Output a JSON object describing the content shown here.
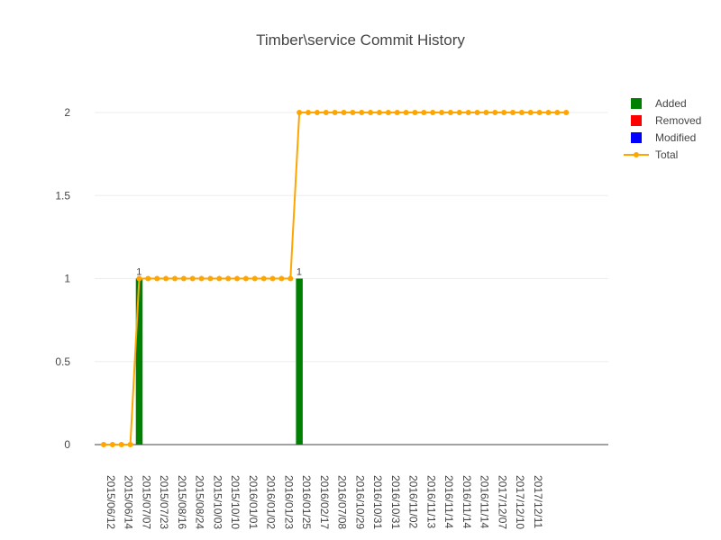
{
  "chart_data": {
    "type": "bar",
    "title": "Timber\\service Commit History",
    "xlabel": "",
    "ylabel": "",
    "ylim": [
      0,
      2.2
    ],
    "y_ticks": [
      0,
      0.5,
      1,
      1.5,
      2
    ],
    "y_tick_labels": [
      "0",
      "0.5",
      "1",
      "1.5",
      "2"
    ],
    "x_tick_labels": [
      "2015/06/12",
      "2015/06/14",
      "2015/07/07",
      "2015/07/23",
      "2015/08/16",
      "2015/08/24",
      "2015/10/03",
      "2015/10/10",
      "2016/01/01",
      "2016/01/02",
      "2016/01/23",
      "2016/01/25",
      "2016/02/17",
      "2016/07/08",
      "2016/10/29",
      "2016/10/31",
      "2016/10/31",
      "2016/11/02",
      "2016/11/13",
      "2016/11/14",
      "2016/11/14",
      "2016/11/14",
      "2017/12/07",
      "2017/12/10",
      "2017/12/11"
    ],
    "points_per_tick": 2,
    "series": [
      {
        "name": "Added",
        "kind": "bar",
        "color": "#008000",
        "bars": [
          {
            "index": 4,
            "value": 1,
            "label": "1"
          },
          {
            "index": 22,
            "value": 1,
            "label": "1"
          }
        ]
      },
      {
        "name": "Removed",
        "kind": "bar",
        "color": "#ff0000",
        "bars": []
      },
      {
        "name": "Modified",
        "kind": "bar",
        "color": "#0000ff",
        "bars": []
      },
      {
        "name": "Total",
        "kind": "line",
        "color": "#ffa500",
        "values": [
          0,
          0,
          0,
          0,
          1,
          1,
          1,
          1,
          1,
          1,
          1,
          1,
          1,
          1,
          1,
          1,
          1,
          1,
          1,
          1,
          1,
          1,
          2,
          2,
          2,
          2,
          2,
          2,
          2,
          2,
          2,
          2,
          2,
          2,
          2,
          2,
          2,
          2,
          2,
          2,
          2,
          2,
          2,
          2,
          2,
          2,
          2,
          2,
          2,
          2,
          2,
          2,
          2
        ]
      }
    ],
    "grid": true,
    "legend": "top-right"
  }
}
